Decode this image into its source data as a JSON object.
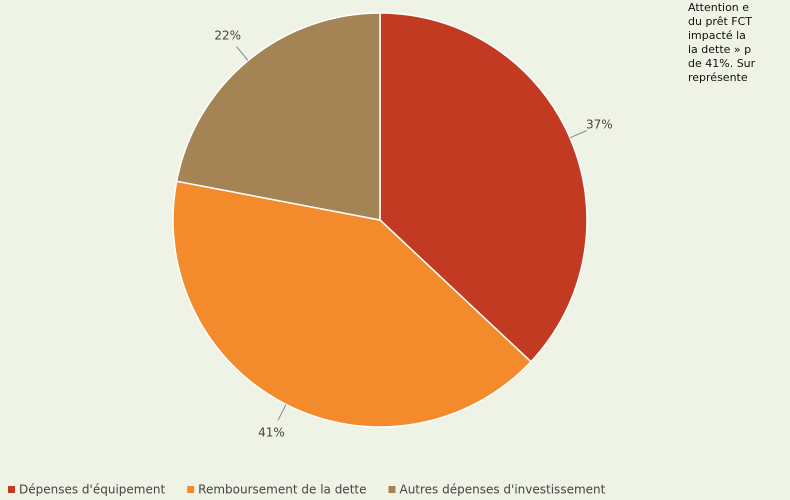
{
  "chart_data": {
    "type": "pie",
    "categories": [
      "Dépenses d'équipement",
      "Remboursement de la dette",
      "Autres dépenses d'investissement"
    ],
    "values": [
      37,
      41,
      22
    ],
    "value_labels": [
      "37%",
      "41%",
      "22%"
    ],
    "colors": [
      "#c23a22",
      "#f38b2c",
      "#a48455"
    ],
    "legend": "bottom",
    "note": [
      "Attention e",
      "du prêt FCT",
      "impacté la",
      "la dette » p",
      "de 41%. Sur",
      "représente"
    ]
  }
}
